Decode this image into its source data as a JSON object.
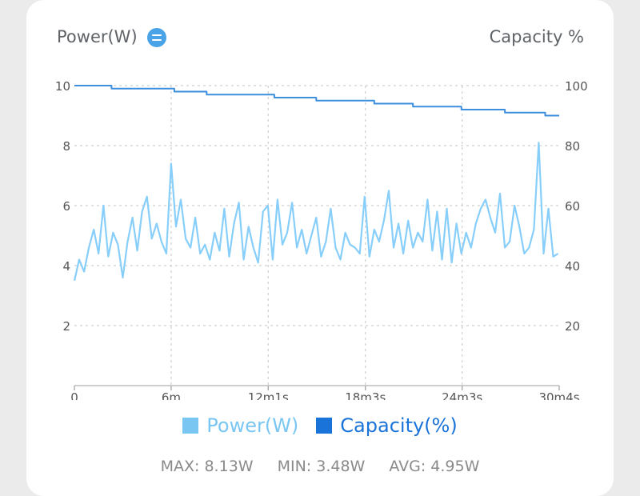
{
  "header": {
    "left_title": "Power(W)",
    "right_title": "Capacity %"
  },
  "icons": {
    "toggle": "swap-toggle-icon"
  },
  "colors": {
    "power": "#87cefa",
    "capacity": "#3d8fdd",
    "legend_power": "#79c6f2",
    "legend_capacity": "#1a73d9",
    "axis_text": "#555555",
    "grid": "#cfcfcf"
  },
  "legend": {
    "power_label": "Power(W)",
    "capacity_label": "Capacity(%)"
  },
  "stats": {
    "max": "MAX: 8.13W",
    "min": "MIN: 3.48W",
    "avg": "AVG: 4.95W"
  },
  "chart_data": {
    "type": "line",
    "title": "",
    "xlabel": "",
    "x_ticks": [
      {
        "label": "0",
        "min": 0
      },
      {
        "label": "6m",
        "min": 6
      },
      {
        "label": "12m1s",
        "min": 12.02
      },
      {
        "label": "18m3s",
        "min": 18.05
      },
      {
        "label": "24m3s",
        "min": 24.05
      },
      {
        "label": "30m4s",
        "min": 30.07
      }
    ],
    "x_range_min": [
      0,
      30.07
    ],
    "y_left": {
      "label": "Power(W)",
      "range": [
        0,
        10
      ],
      "ticks": [
        "2",
        "4",
        "6",
        "8",
        "10"
      ]
    },
    "y_right": {
      "label": "Capacity %",
      "range": [
        0,
        100
      ],
      "ticks": [
        "20",
        "40",
        "60",
        "80",
        "100"
      ]
    },
    "grid": "dashed-horizontal-and-vertical",
    "legend_position": "bottom",
    "series": [
      {
        "name": "Power(W)",
        "axis": "left",
        "x_min": [
          0,
          0.3,
          0.6,
          0.9,
          1.2,
          1.5,
          1.8,
          2.1,
          2.4,
          2.7,
          3.0,
          3.3,
          3.6,
          3.9,
          4.2,
          4.5,
          4.8,
          5.1,
          5.4,
          5.7,
          6.0,
          6.3,
          6.6,
          6.9,
          7.2,
          7.5,
          7.8,
          8.1,
          8.4,
          8.7,
          9.0,
          9.3,
          9.6,
          9.9,
          10.2,
          10.5,
          10.8,
          11.1,
          11.4,
          11.7,
          12.0,
          12.3,
          12.6,
          12.9,
          13.2,
          13.5,
          13.8,
          14.1,
          14.4,
          14.7,
          15.0,
          15.3,
          15.6,
          15.9,
          16.2,
          16.5,
          16.8,
          17.1,
          17.4,
          17.7,
          18.0,
          18.3,
          18.6,
          18.9,
          19.2,
          19.5,
          19.8,
          20.1,
          20.4,
          20.7,
          21.0,
          21.3,
          21.6,
          21.9,
          22.2,
          22.5,
          22.8,
          23.1,
          23.4,
          23.7,
          24.0,
          24.3,
          24.6,
          24.9,
          25.2,
          25.5,
          25.8,
          26.1,
          26.4,
          26.7,
          27.0,
          27.3,
          27.6,
          27.9,
          28.2,
          28.5,
          28.8,
          29.1,
          29.4,
          29.7,
          30.0
        ],
        "values": [
          3.5,
          4.2,
          3.8,
          4.6,
          5.2,
          4.4,
          6.0,
          4.3,
          5.1,
          4.7,
          3.6,
          4.8,
          5.6,
          4.5,
          5.8,
          6.3,
          4.9,
          5.4,
          4.8,
          4.4,
          7.4,
          5.3,
          6.2,
          4.9,
          4.6,
          5.6,
          4.4,
          4.7,
          4.2,
          5.1,
          4.5,
          5.9,
          4.3,
          5.4,
          6.1,
          4.2,
          5.3,
          4.6,
          4.1,
          5.8,
          6.0,
          4.2,
          6.2,
          4.7,
          5.1,
          6.1,
          4.6,
          5.2,
          4.4,
          5.0,
          5.6,
          4.3,
          4.8,
          5.9,
          4.6,
          4.2,
          5.1,
          4.7,
          4.6,
          4.4,
          6.3,
          4.3,
          5.2,
          4.8,
          5.5,
          6.5,
          4.6,
          5.4,
          4.4,
          5.5,
          4.6,
          5.1,
          4.8,
          6.2,
          4.5,
          5.8,
          4.2,
          5.9,
          4.1,
          5.4,
          4.4,
          5.1,
          4.6,
          5.4,
          5.9,
          6.2,
          5.6,
          5.1,
          6.4,
          4.6,
          4.8,
          6.0,
          5.3,
          4.4,
          4.6,
          5.2,
          8.1,
          4.4,
          5.9,
          4.3,
          4.4
        ]
      },
      {
        "name": "Capacity(%)",
        "axis": "right",
        "x_min": [
          0,
          2.3,
          2.3,
          6.2,
          6.2,
          8.2,
          8.2,
          12.4,
          12.4,
          15.0,
          15.0,
          18.6,
          18.6,
          21.0,
          21.0,
          24.0,
          24.0,
          26.7,
          26.7,
          29.2,
          29.2,
          30.07
        ],
        "values": [
          100,
          100,
          99,
          99,
          98,
          98,
          97,
          97,
          96,
          96,
          95,
          95,
          94,
          94,
          93,
          93,
          92,
          92,
          91,
          91,
          90,
          90
        ]
      }
    ]
  }
}
